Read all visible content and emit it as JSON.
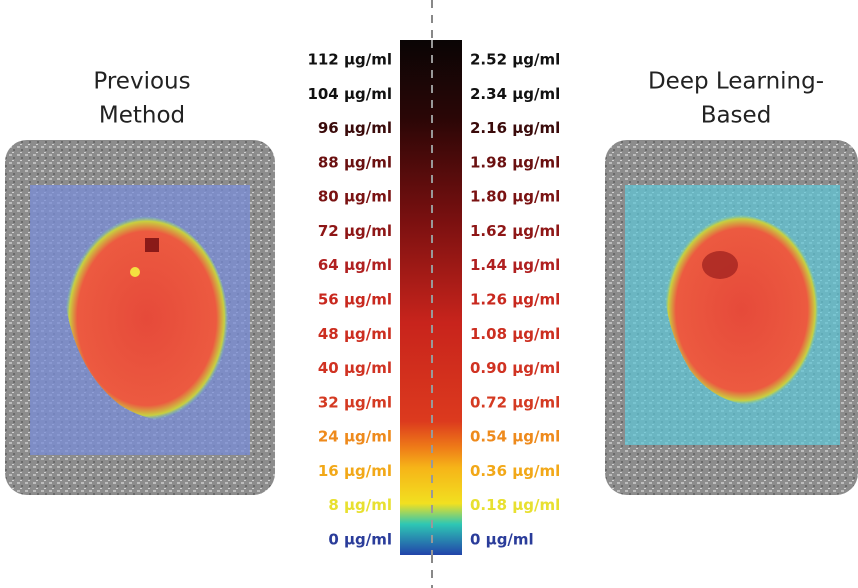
{
  "left_panel": {
    "title_lines": [
      "Previous",
      "Method"
    ]
  },
  "right_panel": {
    "title_lines": [
      "Deep Learning-",
      "Based"
    ]
  },
  "scale_left": [
    "112 µg/ml",
    "104 µg/ml",
    "96 µg/ml",
    "88 µg/ml",
    "80 µg/ml",
    "72 µg/ml",
    "64 µg/ml",
    "56 µg/ml",
    "48 µg/ml",
    "40 µg/ml",
    "32 µg/ml",
    "24 µg/ml",
    "16 µg/ml",
    "8 µg/ml",
    "0 µg/ml"
  ],
  "scale_right": [
    "2.52 µg/ml",
    "2.34 µg/ml",
    "2.16 µg/ml",
    "1.98 µg/ml",
    "1.80 µg/ml",
    "1.62 µg/ml",
    "1.44 µg/ml",
    "1.26 µg/ml",
    "1.08 µg/ml",
    "0.90 µg/ml",
    "0.72 µg/ml",
    "0.54 µg/ml",
    "0.36 µg/ml",
    "0.18 µg/ml",
    "0 µg/ml"
  ]
}
